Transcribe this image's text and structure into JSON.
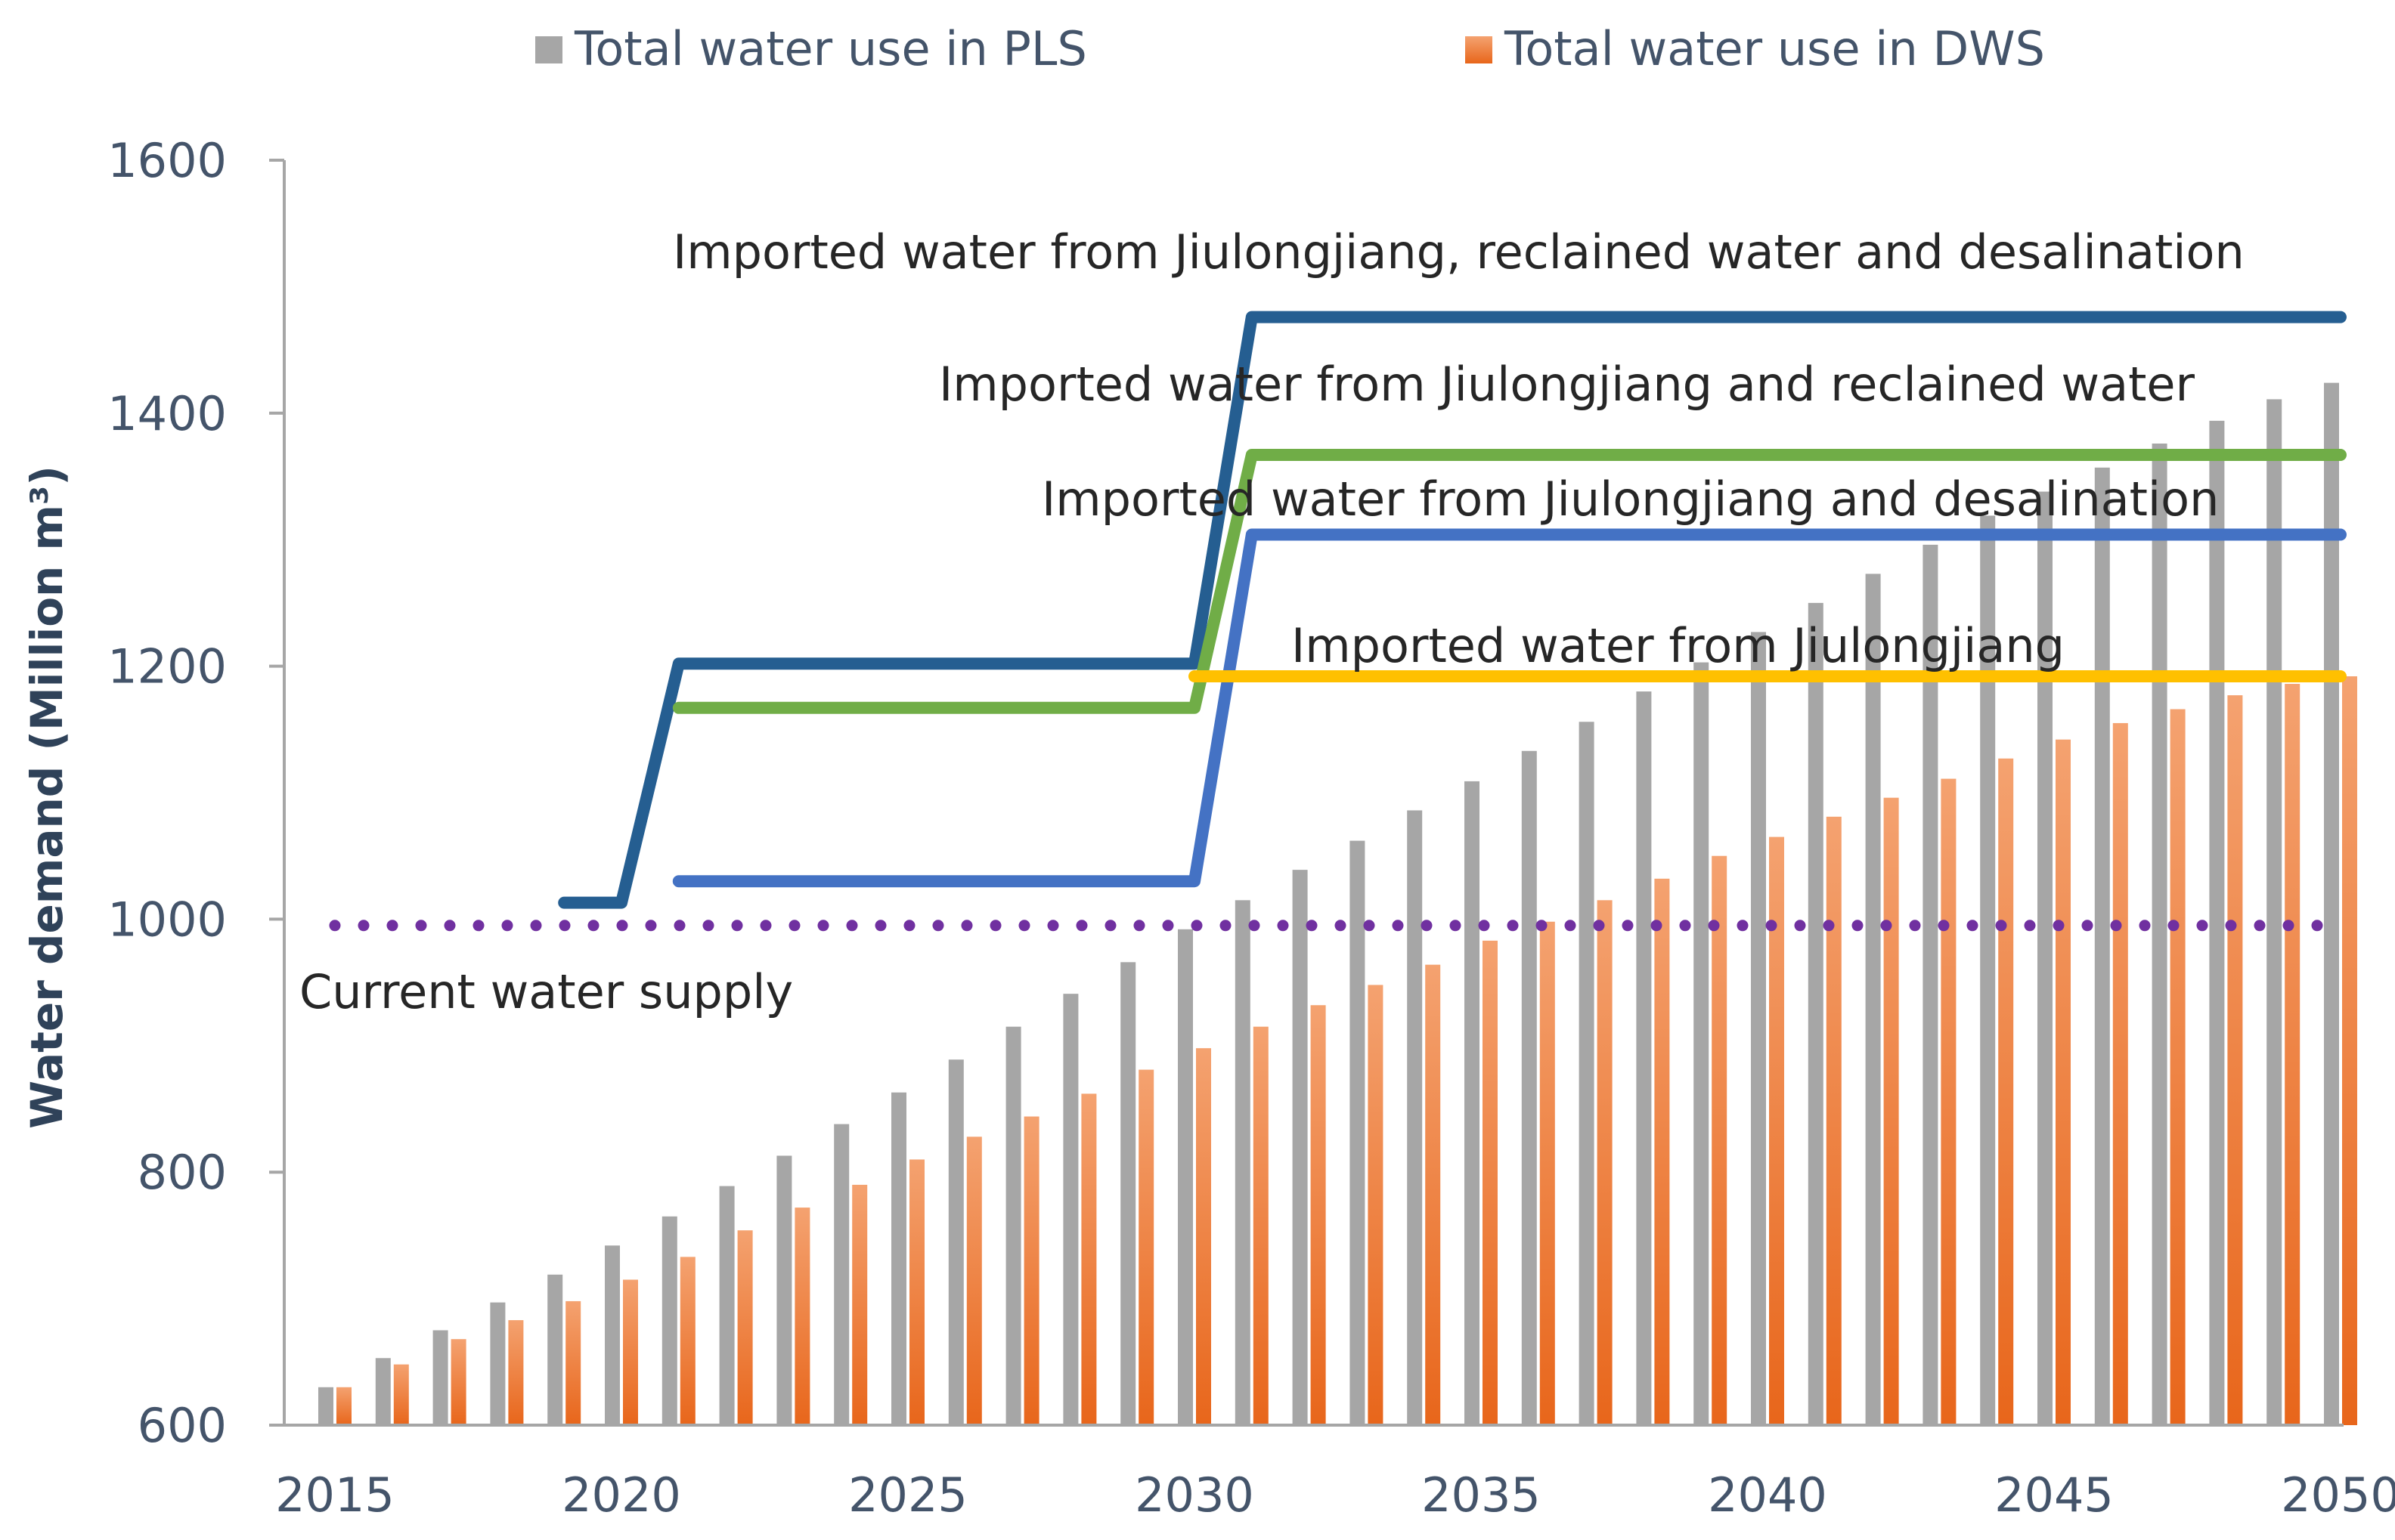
{
  "chart_data": {
    "type": "bar",
    "x": [
      2015,
      2016,
      2017,
      2018,
      2019,
      2020,
      2021,
      2022,
      2023,
      2024,
      2025,
      2026,
      2027,
      2028,
      2029,
      2030,
      2031,
      2032,
      2033,
      2034,
      2035,
      2036,
      2037,
      2038,
      2039,
      2040,
      2041,
      2042,
      2043,
      2044,
      2045,
      2046,
      2047,
      2048,
      2049,
      2050
    ],
    "xticks": [
      2015,
      2020,
      2025,
      2030,
      2035,
      2040,
      2045,
      2050
    ],
    "ylabel": "Water demand (Million m³)",
    "ylim": [
      600,
      1600
    ],
    "yticks": [
      600,
      800,
      1000,
      1200,
      1400,
      1600
    ],
    "legend_position": "top",
    "series": [
      {
        "name": "Total water use in PLS",
        "kind": "bar",
        "color": "#a6a6a6",
        "values": [
          630,
          653,
          675,
          697,
          719,
          742,
          765,
          789,
          813,
          838,
          863,
          889,
          915,
          941,
          966,
          992,
          1015,
          1039,
          1062,
          1086,
          1109,
          1133,
          1156,
          1180,
          1203,
          1227,
          1250,
          1273,
          1296,
          1319,
          1338,
          1357,
          1376,
          1394,
          1411,
          1424
        ]
      },
      {
        "name": "Total water use in DWS",
        "kind": "bar",
        "color": "#ed7d31",
        "values": [
          630,
          648,
          668,
          683,
          698,
          715,
          733,
          754,
          772,
          790,
          810,
          828,
          844,
          862,
          881,
          898,
          915,
          932,
          948,
          964,
          983,
          998,
          1015,
          1032,
          1050,
          1065,
          1081,
          1096,
          1111,
          1127,
          1142,
          1155,
          1166,
          1177,
          1186,
          1192
        ]
      }
    ],
    "lines": [
      {
        "label": "Imported water from Jiulongjiang, reclained water and desalination",
        "color": "#255e91",
        "points": [
          [
            2019,
            1013
          ],
          [
            2020,
            1013
          ],
          [
            2021,
            1202
          ],
          [
            2030,
            1202
          ],
          [
            2031,
            1476
          ],
          [
            2050,
            1476
          ]
        ]
      },
      {
        "label": "Imported water from Jiulongjiang and reclained water",
        "color": "#70ad47",
        "points": [
          [
            2021,
            1167
          ],
          [
            2030,
            1167
          ],
          [
            2031,
            1367
          ],
          [
            2050,
            1367
          ]
        ]
      },
      {
        "label": "Imported water from Jiulongjiang and desalination",
        "color": "#4472c4",
        "points": [
          [
            2021,
            1030
          ],
          [
            2030,
            1030
          ],
          [
            2031,
            1304
          ],
          [
            2050,
            1304
          ]
        ]
      },
      {
        "label": "Imported water from Jiulongjiang",
        "color": "#ffc000",
        "points": [
          [
            2030,
            1192
          ],
          [
            2050,
            1192
          ]
        ]
      },
      {
        "label": "Current water supply",
        "color": "#7030a0",
        "style": "dotted",
        "points": [
          [
            2015,
            995
          ],
          [
            2050,
            995
          ]
        ]
      }
    ]
  }
}
